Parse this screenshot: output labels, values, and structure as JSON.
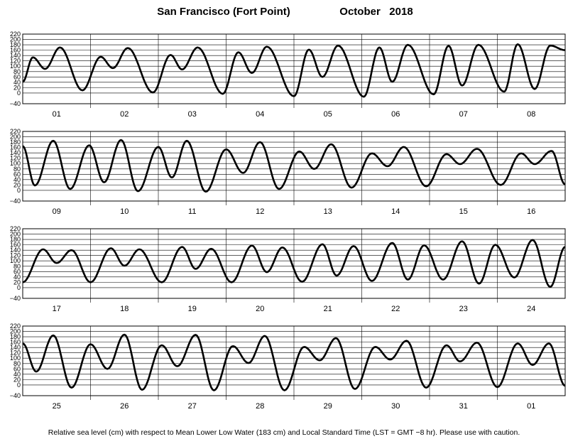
{
  "chart_data": {
    "type": "line",
    "title_station": "San Francisco (Fort Point)",
    "title_period": "October   2018",
    "footnote": "Relative sea level (cm) with respect to Mean Lower Low Water (183 cm) and Local Standard Time (LST = GMT −8 hr). Please use with caution.",
    "ylim": [
      -40,
      220
    ],
    "yticks": [
      "220",
      "200",
      "180",
      "160",
      "140",
      "120",
      "100",
      "80",
      "60",
      "40",
      "20",
      "0",
      "−40"
    ],
    "ytick_values": [
      220,
      200,
      180,
      160,
      140,
      120,
      100,
      80,
      60,
      40,
      20,
      0,
      -40
    ],
    "grid": true,
    "panels": [
      {
        "days": [
          "01",
          "02",
          "03",
          "04",
          "05",
          "06",
          "07",
          "08"
        ],
        "extrema": [
          [
            0,
            42
          ],
          [
            0.15,
            133
          ],
          [
            0.33,
            90
          ],
          [
            0.55,
            170
          ],
          [
            0.88,
            10
          ],
          [
            1.15,
            135
          ],
          [
            1.33,
            93
          ],
          [
            1.55,
            168
          ],
          [
            1.92,
            2
          ],
          [
            2.18,
            142
          ],
          [
            2.35,
            88
          ],
          [
            2.58,
            170
          ],
          [
            2.95,
            -3
          ],
          [
            3.18,
            152
          ],
          [
            3.38,
            75
          ],
          [
            3.6,
            173
          ],
          [
            4.0,
            -12
          ],
          [
            4.22,
            162
          ],
          [
            4.42,
            60
          ],
          [
            4.65,
            177
          ],
          [
            5.03,
            -14
          ],
          [
            5.26,
            170
          ],
          [
            5.45,
            42
          ],
          [
            5.68,
            180
          ],
          [
            6.06,
            -5
          ],
          [
            6.28,
            176
          ],
          [
            6.48,
            28
          ],
          [
            6.72,
            180
          ],
          [
            7.1,
            5
          ],
          [
            7.3,
            182
          ],
          [
            7.55,
            15
          ],
          [
            7.78,
            177
          ],
          [
            8,
            160
          ]
        ]
      },
      {
        "days": [
          "09",
          "10",
          "11",
          "12",
          "13",
          "14",
          "15",
          "16"
        ],
        "extrema": [
          [
            0,
            165
          ],
          [
            0.18,
            18
          ],
          [
            0.45,
            185
          ],
          [
            0.7,
            5
          ],
          [
            0.98,
            168
          ],
          [
            1.2,
            30
          ],
          [
            1.45,
            188
          ],
          [
            1.7,
            -3
          ],
          [
            2.0,
            162
          ],
          [
            2.2,
            48
          ],
          [
            2.42,
            185
          ],
          [
            2.7,
            -5
          ],
          [
            3.0,
            153
          ],
          [
            3.25,
            65
          ],
          [
            3.5,
            180
          ],
          [
            3.78,
            5
          ],
          [
            4.08,
            145
          ],
          [
            4.3,
            80
          ],
          [
            4.55,
            172
          ],
          [
            4.85,
            10
          ],
          [
            5.15,
            138
          ],
          [
            5.38,
            90
          ],
          [
            5.62,
            162
          ],
          [
            5.95,
            15
          ],
          [
            6.25,
            135
          ],
          [
            6.45,
            98
          ],
          [
            6.7,
            155
          ],
          [
            7.05,
            20
          ],
          [
            7.35,
            138
          ],
          [
            7.55,
            98
          ],
          [
            7.8,
            147
          ],
          [
            8,
            22
          ]
        ]
      },
      {
        "days": [
          "17",
          "18",
          "19",
          "20",
          "21",
          "22",
          "23",
          "24"
        ],
        "extrema": [
          [
            0,
            20
          ],
          [
            0.3,
            143
          ],
          [
            0.5,
            92
          ],
          [
            0.72,
            140
          ],
          [
            1.0,
            20
          ],
          [
            1.3,
            147
          ],
          [
            1.5,
            82
          ],
          [
            1.72,
            143
          ],
          [
            2.05,
            20
          ],
          [
            2.35,
            152
          ],
          [
            2.55,
            70
          ],
          [
            2.78,
            145
          ],
          [
            3.08,
            20
          ],
          [
            3.38,
            157
          ],
          [
            3.6,
            58
          ],
          [
            3.83,
            150
          ],
          [
            4.12,
            22
          ],
          [
            4.42,
            162
          ],
          [
            4.63,
            45
          ],
          [
            4.88,
            155
          ],
          [
            5.15,
            25
          ],
          [
            5.45,
            167
          ],
          [
            5.68,
            30
          ],
          [
            5.92,
            158
          ],
          [
            6.2,
            30
          ],
          [
            6.48,
            173
          ],
          [
            6.73,
            15
          ],
          [
            6.97,
            160
          ],
          [
            7.25,
            38
          ],
          [
            7.52,
            178
          ],
          [
            7.78,
            3
          ],
          [
            8,
            152
          ]
        ]
      },
      {
        "days": [
          "25",
          "26",
          "27",
          "28",
          "29",
          "30",
          "31",
          "01"
        ],
        "extrema": [
          [
            0,
            155
          ],
          [
            0.2,
            50
          ],
          [
            0.45,
            185
          ],
          [
            0.72,
            -10
          ],
          [
            1.0,
            152
          ],
          [
            1.25,
            60
          ],
          [
            1.5,
            188
          ],
          [
            1.76,
            -18
          ],
          [
            2.05,
            148
          ],
          [
            2.28,
            70
          ],
          [
            2.55,
            187
          ],
          [
            2.82,
            -20
          ],
          [
            3.1,
            145
          ],
          [
            3.33,
            82
          ],
          [
            3.57,
            183
          ],
          [
            3.86,
            -20
          ],
          [
            4.15,
            142
          ],
          [
            4.38,
            92
          ],
          [
            4.62,
            175
          ],
          [
            4.9,
            -15
          ],
          [
            5.2,
            142
          ],
          [
            5.42,
            95
          ],
          [
            5.66,
            165
          ],
          [
            5.95,
            -10
          ],
          [
            6.25,
            148
          ],
          [
            6.45,
            88
          ],
          [
            6.7,
            158
          ],
          [
            7.0,
            -8
          ],
          [
            7.3,
            155
          ],
          [
            7.52,
            75
          ],
          [
            7.76,
            155
          ],
          [
            8,
            -3
          ]
        ]
      }
    ]
  }
}
